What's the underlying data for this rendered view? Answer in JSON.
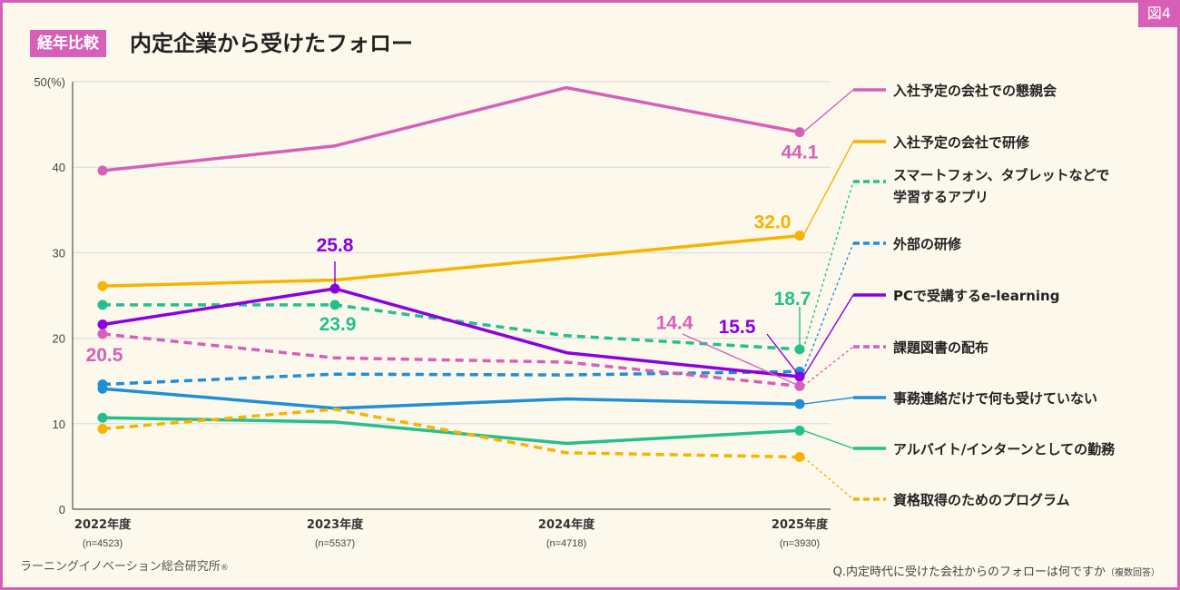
{
  "figure_tag": "図4",
  "badge": "経年比較",
  "title": "内定企業から受けたフォロー",
  "credit": "ラーニングイノベーション総合研究所",
  "credit_mark": "®",
  "question": "Q.内定時代に受けた会社からのフォローは何ですか",
  "question_note": "（複数回答）",
  "colors": {
    "frame": "#d660b8",
    "background": "#fdf8ec"
  },
  "chart_data": {
    "type": "line",
    "categories": [
      "2022年度",
      "2023年度",
      "2024年度",
      "2025年度"
    ],
    "sample_sizes": [
      "(n=4523)",
      "(n=5537)",
      "(n=4718)",
      "(n=3930)"
    ],
    "ylim": [
      0,
      50
    ],
    "yticks": [
      "0",
      "10",
      "20",
      "30",
      "40",
      "50(%)"
    ],
    "grid": true,
    "legend_position": "right",
    "series": [
      {
        "name": "入社予定の会社での懇親会",
        "values": [
          39.6,
          42.5,
          49.3,
          44.1
        ],
        "color": "#d660b8",
        "dashed": false
      },
      {
        "name": "入社予定の会社で研修",
        "values": [
          26.1,
          26.8,
          29.4,
          32.0
        ],
        "color": "#f5b400",
        "dashed": false
      },
      {
        "name": "スマートフォン、タブレットなどで学習するアプリ",
        "values": [
          23.9,
          23.9,
          20.3,
          18.7
        ],
        "color": "#25bf8e",
        "dashed": true
      },
      {
        "name": "外部の研修",
        "values": [
          14.6,
          15.8,
          15.7,
          16.1
        ],
        "color": "#1f8fd6",
        "dashed": true
      },
      {
        "name": "PCで受講するe-learning",
        "values": [
          21.6,
          25.8,
          18.3,
          15.5
        ],
        "color": "#8b00e0",
        "dashed": false
      },
      {
        "name": "課題図書の配布",
        "values": [
          20.5,
          17.7,
          17.2,
          14.4
        ],
        "color": "#d660b8",
        "dashed": true
      },
      {
        "name": "事務連絡だけで何も受けていない",
        "values": [
          14.1,
          11.8,
          12.9,
          12.3
        ],
        "color": "#1f8fd6",
        "dashed": false
      },
      {
        "name": "アルバイト/インターンとしての勤務",
        "values": [
          10.7,
          10.2,
          7.7,
          9.2
        ],
        "color": "#25bf8e",
        "dashed": false
      },
      {
        "name": "資格取得のためのプログラム",
        "values": [
          9.4,
          11.7,
          6.6,
          6.1
        ],
        "color": "#f5b400",
        "dashed": true
      }
    ],
    "data_labels": [
      {
        "series": 0,
        "point": 3,
        "text": "44.1"
      },
      {
        "series": 1,
        "point": 3,
        "text": "32.0"
      },
      {
        "series": 2,
        "point": 1,
        "text": "23.9"
      },
      {
        "series": 2,
        "point": 3,
        "text": "18.7"
      },
      {
        "series": 4,
        "point": 1,
        "text": "25.8"
      },
      {
        "series": 4,
        "point": 3,
        "text": "15.5"
      },
      {
        "series": 5,
        "point": 0,
        "text": "20.5"
      },
      {
        "series": 5,
        "point": 3,
        "text": "14.4"
      }
    ]
  }
}
